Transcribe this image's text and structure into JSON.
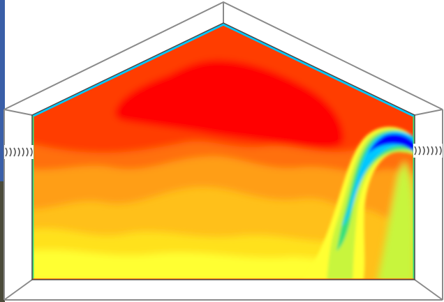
{
  "figure": {
    "style": "cfd-contour",
    "colors": {
      "background": "#ffffff",
      "edge_strip": "#3a5fa8",
      "wireframe": "#8a8a8a",
      "inner_outline": "#4a4a4a",
      "color_scale": [
        "#0000ff",
        "#00c8ff",
        "#39e07a",
        "#c8f53d",
        "#ffff33",
        "#ffe11f",
        "#ffc01a",
        "#ff9e14",
        "#ff700a",
        "#ff3d00",
        "#ff0000"
      ]
    },
    "labels": {},
    "features": {
      "inlet_left": "vent-icon",
      "outlet_right": "vent-icon",
      "plume": "cool-air-jet"
    }
  }
}
